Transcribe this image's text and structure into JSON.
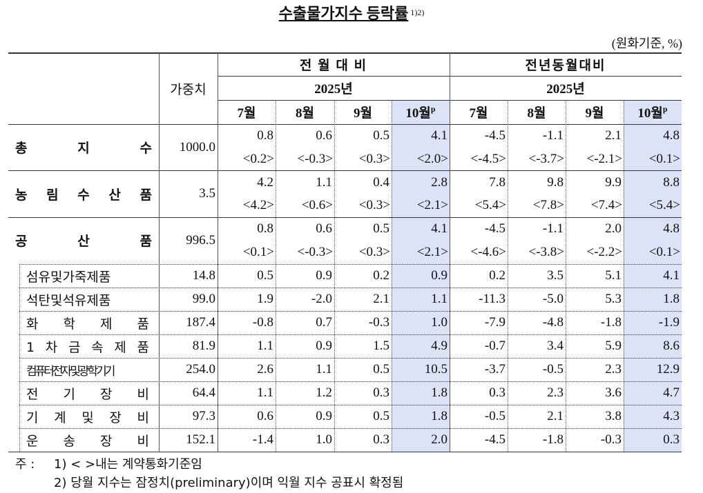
{
  "title": "수출물가지수 등락률",
  "title_note": "1)2)",
  "unit": "(원화기준, %)",
  "header": {
    "weight": "가중치",
    "groups": [
      {
        "name": "전 월 대 비",
        "year": "2025년",
        "months": [
          "7월",
          "8월",
          "9월",
          "10월"
        ],
        "mark": "p"
      },
      {
        "name": "전년동월대비",
        "year": "2025년",
        "months": [
          "7월",
          "8월",
          "9월",
          "10월"
        ],
        "mark": "p"
      }
    ]
  },
  "main_rows": [
    {
      "label": "총 지 수",
      "weight": "1000.0",
      "values": [
        "0.8",
        "0.6",
        "0.5",
        "4.1",
        "-4.5",
        "-1.1",
        "2.1",
        "4.8"
      ],
      "contract": [
        "<0.2>",
        "<-0.3>",
        "<0.3>",
        "<2.0>",
        "<-4.5>",
        "<-3.7>",
        "<-2.1>",
        "<0.1>"
      ]
    },
    {
      "label": "농 림 수 산 품",
      "weight": "3.5",
      "values": [
        "4.2",
        "1.1",
        "0.4",
        "2.8",
        "7.8",
        "9.8",
        "9.9",
        "8.8"
      ],
      "contract": [
        "<4.2>",
        "<0.6>",
        "<0.3>",
        "<2.1>",
        "<5.4>",
        "<7.8>",
        "<7.4>",
        "<5.4>"
      ]
    },
    {
      "label": "공 산 품",
      "weight": "996.5",
      "values": [
        "0.8",
        "0.6",
        "0.5",
        "4.1",
        "-4.5",
        "-1.1",
        "2.0",
        "4.8"
      ],
      "contract": [
        "<0.1>",
        "<-0.3>",
        "<0.3>",
        "<2.1>",
        "<-4.6>",
        "<-3.8>",
        "<-2.2>",
        "<0.1>"
      ]
    }
  ],
  "sub_rows": [
    {
      "label": "섬유및가죽제품",
      "weight": "14.8",
      "values": [
        "0.5",
        "0.9",
        "0.2",
        "0.9",
        "0.2",
        "3.5",
        "5.1",
        "4.1"
      ]
    },
    {
      "label": "석탄및석유제품",
      "weight": "99.0",
      "values": [
        "1.9",
        "-2.0",
        "2.1",
        "1.1",
        "-11.3",
        "-5.0",
        "5.3",
        "1.8"
      ]
    },
    {
      "label": "화 학 제 품",
      "weight": "187.4",
      "values": [
        "-0.8",
        "0.7",
        "-0.3",
        "1.0",
        "-7.9",
        "-4.8",
        "-1.8",
        "-1.9"
      ]
    },
    {
      "label": "1 차 금 속 제 품",
      "weight": "81.9",
      "values": [
        "1.1",
        "0.9",
        "1.5",
        "4.9",
        "-0.7",
        "3.4",
        "5.9",
        "8.6"
      ]
    },
    {
      "label": "컴퓨터전자및광학기기",
      "weight": "254.0",
      "values": [
        "2.6",
        "1.1",
        "0.5",
        "10.5",
        "-3.7",
        "-0.5",
        "2.3",
        "12.9"
      ]
    },
    {
      "label": "전 기 장 비",
      "weight": "64.4",
      "values": [
        "1.1",
        "1.2",
        "0.3",
        "1.8",
        "0.3",
        "2.3",
        "3.6",
        "4.7"
      ]
    },
    {
      "label": "기 계 및 장 비",
      "weight": "97.3",
      "values": [
        "0.6",
        "0.9",
        "0.5",
        "1.8",
        "-0.5",
        "2.1",
        "3.8",
        "4.3"
      ]
    },
    {
      "label": "운 송 장 비",
      "weight": "152.1",
      "values": [
        "-1.4",
        "1.0",
        "0.3",
        "2.0",
        "-4.5",
        "-1.8",
        "-0.3",
        "0.3"
      ]
    }
  ],
  "notes": {
    "prefix": "주 :",
    "items": [
      "1) < >내는 계약통화기준임",
      "2) 당월 지수는 잠정치(preliminary)이며 익월 지수 공표시 확정됨"
    ]
  }
}
